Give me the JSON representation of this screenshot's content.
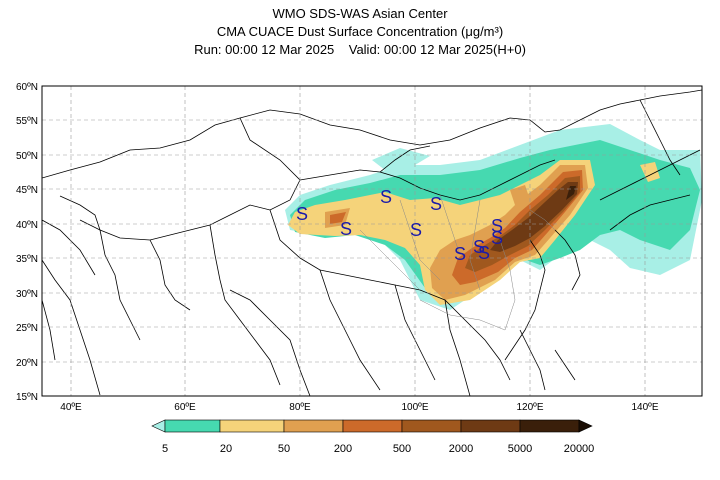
{
  "header": {
    "line1": "WMO SDS-WAS Asian Center",
    "line2": "CMA CUACE Dust Surface Concentration (μg/m³)",
    "line3": "Run: 00:00 12 Mar 2025    Valid: 00:00 12 Mar 2025(H+0)"
  },
  "map": {
    "lon_range": [
      35,
      150
    ],
    "lat_range": [
      15,
      60
    ],
    "lat_ticks": [
      "15ºN",
      "20ºN",
      "25ºN",
      "30ºN",
      "35ºN",
      "40ºN",
      "45ºN",
      "50ºN",
      "55ºN",
      "60ºN"
    ],
    "lon_ticks": [
      "40ºE",
      "60ºE",
      "80ºE",
      "100ºE",
      "120ºE",
      "140ºE"
    ],
    "storm_symbol": "S"
  },
  "colorbar": {
    "labels": [
      "5",
      "20",
      "50",
      "200",
      "500",
      "2000",
      "5000",
      "20000"
    ],
    "colors": [
      "#a8efe6",
      "#46d9b0",
      "#f5d37a",
      "#e0a050",
      "#cc6a2a",
      "#a0581e",
      "#6e3a14",
      "#3a1f0a"
    ]
  }
}
